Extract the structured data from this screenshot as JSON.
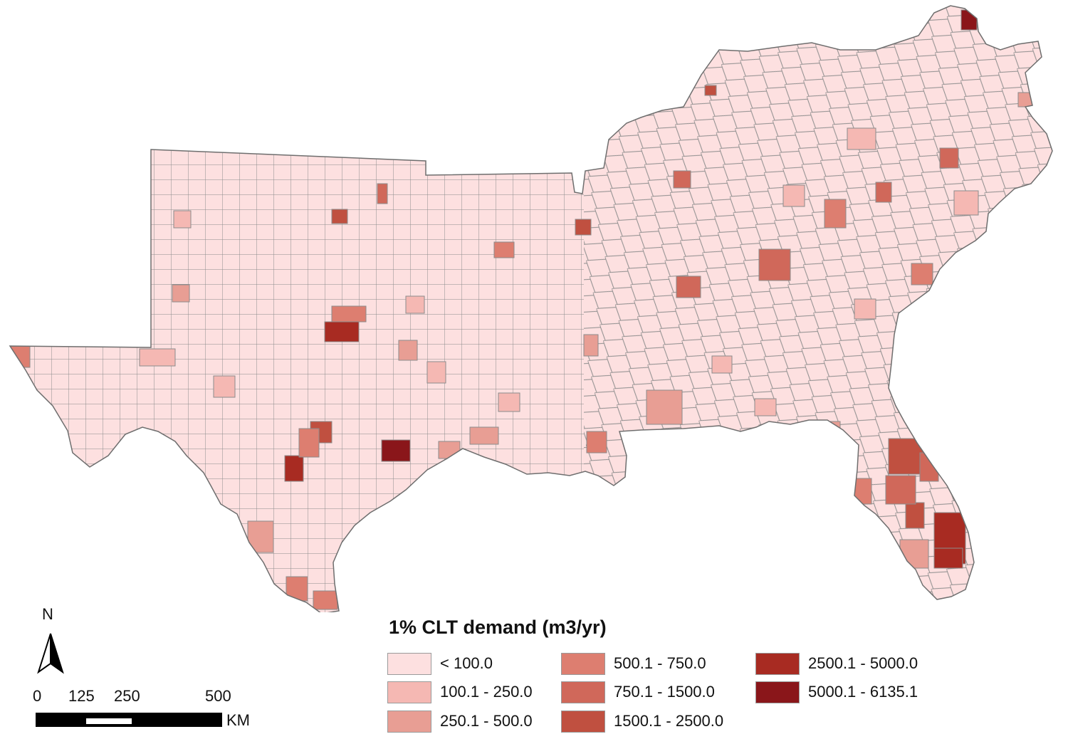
{
  "map": {
    "title": "1% CLT demand (m3/yr)",
    "north_label": "N",
    "scale": {
      "ticks": [
        "0",
        "125",
        "250",
        "500"
      ],
      "unit": "KM"
    },
    "region_colors": {
      "base": "#fde0e0",
      "border": "#8c8c8c",
      "outline": "#6e6e6e"
    },
    "legend": [
      {
        "label": "< 100.0",
        "color": "#fde0e0"
      },
      {
        "label": "100.1 - 250.0",
        "color": "#f5b8b3"
      },
      {
        "label": "250.1 - 500.0",
        "color": "#e89e94"
      },
      {
        "label": "500.1 - 750.0",
        "color": "#dd7e70"
      },
      {
        "label": "750.1 - 1500.0",
        "color": "#d0685a"
      },
      {
        "label": "1500.1 - 2500.0",
        "color": "#c05040"
      },
      {
        "label": "2500.1 - 5000.0",
        "color": "#a82b22"
      },
      {
        "label": "5000.1 - 6135.1",
        "color": "#8a161a"
      }
    ]
  }
}
